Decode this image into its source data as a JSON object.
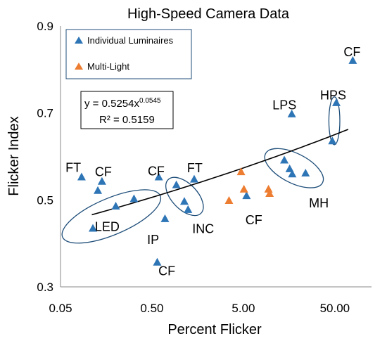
{
  "chart_data": {
    "type": "scatter",
    "title": "High-Speed Camera Data",
    "xlabel": "Percent Flicker",
    "ylabel": "Flicker Index",
    "x_scale": "log",
    "xlim": [
      0.05,
      100
    ],
    "ylim": [
      0.3,
      0.9
    ],
    "x_ticks": [
      {
        "value": 0.05,
        "label": "0.05"
      },
      {
        "value": 0.5,
        "label": "0.50"
      },
      {
        "value": 5,
        "label": "5.00"
      },
      {
        "value": 50,
        "label": "50.00"
      }
    ],
    "y_ticks": [
      {
        "value": 0.3,
        "label": "0.3"
      },
      {
        "value": 0.5,
        "label": "0.5"
      },
      {
        "value": 0.7,
        "label": "0.7"
      },
      {
        "value": 0.9,
        "label": "0.9"
      }
    ],
    "grid": false,
    "legend_position": "top-left",
    "series": [
      {
        "name": "Individual Luminaires",
        "color": "#2e75b6",
        "marker": "triangle",
        "points": [
          {
            "x": 0.085,
            "y": 0.553
          },
          {
            "x": 0.128,
            "y": 0.522
          },
          {
            "x": 0.142,
            "y": 0.543
          },
          {
            "x": 0.113,
            "y": 0.435
          },
          {
            "x": 0.201,
            "y": 0.486
          },
          {
            "x": 0.318,
            "y": 0.503
          },
          {
            "x": 0.594,
            "y": 0.553
          },
          {
            "x": 0.694,
            "y": 0.457
          },
          {
            "x": 0.571,
            "y": 0.357
          },
          {
            "x": 0.924,
            "y": 0.535
          },
          {
            "x": 1.13,
            "y": 0.497
          },
          {
            "x": 1.241,
            "y": 0.478
          },
          {
            "x": 1.448,
            "y": 0.548
          },
          {
            "x": 5.408,
            "y": 0.51
          },
          {
            "x": 14.01,
            "y": 0.592
          },
          {
            "x": 16.02,
            "y": 0.572
          },
          {
            "x": 17.1,
            "y": 0.56
          },
          {
            "x": 23.91,
            "y": 0.562
          },
          {
            "x": 16.9,
            "y": 0.698
          },
          {
            "x": 46.96,
            "y": 0.636
          },
          {
            "x": 51.93,
            "y": 0.724
          },
          {
            "x": 78.57,
            "y": 0.821
          }
        ]
      },
      {
        "name": "Multi-Light",
        "color": "#ed7d31",
        "marker": "triangle",
        "points": [
          {
            "x": 3.48,
            "y": 0.499
          },
          {
            "x": 4.714,
            "y": 0.565
          },
          {
            "x": 5.068,
            "y": 0.525
          },
          {
            "x": 9.41,
            "y": 0.525
          },
          {
            "x": 9.668,
            "y": 0.515
          }
        ]
      }
    ],
    "trendline": {
      "type": "power",
      "coefficient": 0.5254,
      "exponent": 0.0545,
      "x_range": [
        0.11,
        70
      ],
      "equation_text": "y = 0.5254x",
      "equation_exponent": "0.0545",
      "r_squared_text": "R² = 0.5159"
    },
    "annotations": [
      {
        "text": "FT",
        "x": 0.069,
        "y": 0.576
      },
      {
        "text": "CF",
        "x": 0.147,
        "y": 0.566
      },
      {
        "text": "CF",
        "x": 0.556,
        "y": 0.568
      },
      {
        "text": "FT",
        "x": 1.472,
        "y": 0.575
      },
      {
        "text": "LED",
        "x": 0.162,
        "y": 0.44
      },
      {
        "text": "IP",
        "x": 0.515,
        "y": 0.41
      },
      {
        "text": "CF",
        "x": 0.727,
        "y": 0.338
      },
      {
        "text": "INC",
        "x": 1.815,
        "y": 0.435
      },
      {
        "text": "CF",
        "x": 6.5,
        "y": 0.455
      },
      {
        "text": "LPS",
        "x": 14.05,
        "y": 0.72
      },
      {
        "text": "HPS",
        "x": 47.95,
        "y": 0.742
      },
      {
        "text": "CF",
        "x": 77.25,
        "y": 0.842
      },
      {
        "text": "MH",
        "x": 33.43,
        "y": 0.494
      }
    ],
    "highlight_ellipses": [
      {
        "label": "LED",
        "cx": 0.18,
        "cy": 0.462,
        "rx_decades": 0.58,
        "ry_units": 0.042,
        "rotation_deg": -23
      },
      {
        "label": "INC",
        "cx": 1.137,
        "cy": 0.508,
        "rx_decades": 0.14,
        "ry_units": 0.054,
        "rotation_deg": -44
      },
      {
        "label": "MH",
        "cx": 17.9,
        "cy": 0.573,
        "rx_decades": 0.35,
        "ry_units": 0.034,
        "rotation_deg": 27
      },
      {
        "label": "HPS",
        "cx": 49.4,
        "cy": 0.682,
        "rx_decades": 0.06,
        "ry_units": 0.055,
        "rotation_deg": 0
      }
    ]
  }
}
